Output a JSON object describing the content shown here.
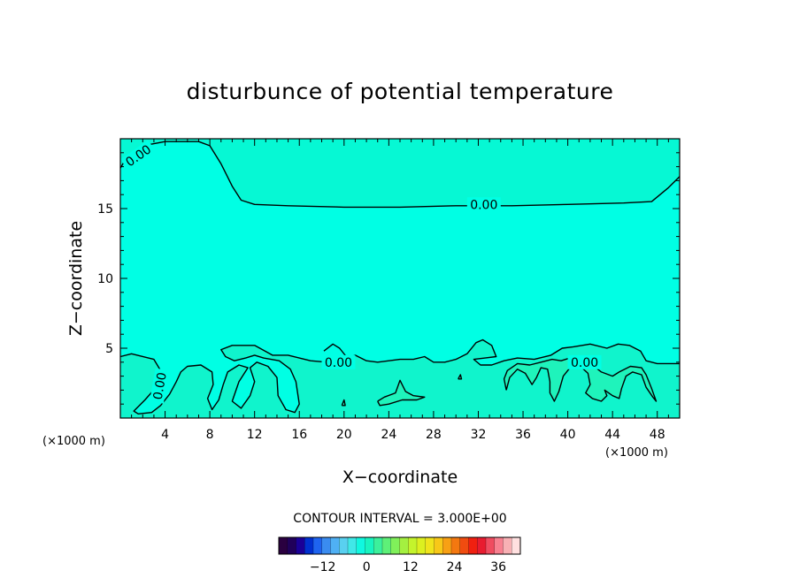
{
  "chart_data": {
    "type": "heatmap",
    "subtype": "contour",
    "title": "disturbunce of potential temperature",
    "xlabel": "X−coordinate",
    "ylabel": "Z−coordinate",
    "x_unit_label": "(×1000 m)",
    "xlim": [
      0,
      50
    ],
    "ylim": [
      0,
      20
    ],
    "x_ticks": [
      4,
      8,
      12,
      16,
      20,
      24,
      28,
      32,
      36,
      40,
      44,
      48
    ],
    "x_tick_labels": [
      "4",
      "8",
      "12",
      "16",
      "20",
      "24",
      "28",
      "32",
      "36",
      "40",
      "44",
      "48"
    ],
    "y_ticks": [
      5,
      10,
      15
    ],
    "y_tick_labels": [
      "5",
      "10",
      "15"
    ],
    "contour_interval_label": "CONTOUR INTERVAL = 3.000E+00",
    "contour_labels": [
      {
        "text": "0.00",
        "x": 1.6,
        "z": 18.8
      },
      {
        "text": "0.00",
        "x": 32.5,
        "z": 15.3
      },
      {
        "text": "0.00",
        "x": 19.5,
        "z": 4.0
      },
      {
        "text": "0.00",
        "x": 41.5,
        "z": 4.0
      },
      {
        "text": "0.00",
        "x": 3.5,
        "z": 2.3
      }
    ],
    "contours": [
      {
        "level": 0,
        "points": [
          [
            0,
            17.9
          ],
          [
            0.6,
            18.7
          ],
          [
            2,
            19.5
          ],
          [
            4,
            19.8
          ],
          [
            7,
            19.8
          ],
          [
            8,
            19.5
          ],
          [
            9,
            18.2
          ],
          [
            10,
            16.6
          ],
          [
            10.8,
            15.6
          ],
          [
            12,
            15.3
          ],
          [
            15,
            15.2
          ],
          [
            20,
            15.1
          ],
          [
            25,
            15.1
          ],
          [
            30,
            15.2
          ],
          [
            35,
            15.2
          ],
          [
            40,
            15.3
          ],
          [
            45,
            15.4
          ],
          [
            47.5,
            15.5
          ],
          [
            49,
            16.5
          ],
          [
            50,
            17.3
          ]
        ]
      },
      {
        "level": 0,
        "points": [
          [
            0,
            4.4
          ],
          [
            1,
            4.6
          ],
          [
            3,
            4.2
          ],
          [
            3.6,
            3.4
          ],
          [
            3.2,
            2.2
          ],
          [
            2.2,
            1.3
          ],
          [
            1.2,
            0.5
          ],
          [
            1.6,
            0.3
          ],
          [
            2.8,
            0.4
          ],
          [
            3.6,
            0.9
          ],
          [
            4.4,
            1.7
          ],
          [
            5,
            2.6
          ],
          [
            5.4,
            3.3
          ],
          [
            6,
            3.7
          ],
          [
            7.2,
            3.8
          ],
          [
            8.2,
            3.3
          ],
          [
            8.3,
            2.4
          ],
          [
            7.8,
            1.4
          ],
          [
            8.2,
            0.6
          ],
          [
            8.8,
            1.3
          ],
          [
            9.2,
            2.4
          ],
          [
            9.6,
            3.3
          ],
          [
            10.6,
            3.8
          ],
          [
            11.4,
            3.6
          ],
          [
            10.6,
            2.6
          ],
          [
            10,
            1.2
          ],
          [
            10.8,
            0.7
          ],
          [
            11.6,
            1.6
          ],
          [
            12,
            2.6
          ],
          [
            11.6,
            3.6
          ],
          [
            12.2,
            4.0
          ],
          [
            13.2,
            3.7
          ],
          [
            14,
            2.9
          ],
          [
            14.1,
            1.6
          ],
          [
            14.8,
            0.6
          ],
          [
            15.6,
            0.4
          ],
          [
            16,
            1.0
          ],
          [
            15.7,
            2.6
          ],
          [
            15.2,
            3.5
          ],
          [
            14.2,
            4.1
          ],
          [
            12.8,
            4.3
          ],
          [
            12,
            4.5
          ],
          [
            11.2,
            4.3
          ],
          [
            10.2,
            4.1
          ],
          [
            9.4,
            4.4
          ],
          [
            9,
            4.9
          ],
          [
            10,
            5.2
          ],
          [
            12,
            5.2
          ],
          [
            13.6,
            4.5
          ],
          [
            15,
            4.5
          ],
          [
            17,
            4.1
          ],
          [
            18.5,
            4.0
          ],
          [
            20,
            4.2
          ],
          [
            21,
            4.5
          ],
          [
            22,
            4.1
          ],
          [
            23,
            4.0
          ],
          [
            24,
            4.1
          ],
          [
            25,
            4.2
          ],
          [
            26.2,
            4.2
          ],
          [
            27.2,
            4.4
          ],
          [
            28,
            4.0
          ],
          [
            29,
            4.0
          ],
          [
            30,
            4.2
          ],
          [
            31,
            4.6
          ],
          [
            31.8,
            5.4
          ],
          [
            32.4,
            5.6
          ],
          [
            33.2,
            5.2
          ],
          [
            33.6,
            4.4
          ],
          [
            32.6,
            4.3
          ],
          [
            31.6,
            4.2
          ],
          [
            32.2,
            3.8
          ],
          [
            33.2,
            3.8
          ],
          [
            34.3,
            4.1
          ],
          [
            35.5,
            4.3
          ],
          [
            37,
            4.2
          ],
          [
            38.5,
            4.5
          ],
          [
            39.5,
            5.0
          ],
          [
            40.5,
            5.1
          ],
          [
            42,
            5.3
          ],
          [
            43.5,
            5.0
          ],
          [
            44.5,
            5.3
          ],
          [
            45.5,
            5.2
          ],
          [
            46.5,
            4.8
          ],
          [
            47,
            4.1
          ],
          [
            48,
            3.9
          ],
          [
            50,
            3.9
          ]
        ]
      },
      {
        "level": 0,
        "points": [
          [
            18.2,
            4.8
          ],
          [
            19,
            5.3
          ],
          [
            19.6,
            5.0
          ],
          [
            20.2,
            4.4
          ]
        ]
      },
      {
        "level": 0,
        "points": [
          [
            23,
            1.2
          ],
          [
            23.6,
            1.5
          ],
          [
            24.6,
            1.8
          ],
          [
            25,
            2.7
          ],
          [
            25.5,
            1.9
          ],
          [
            26.2,
            1.6
          ],
          [
            27.2,
            1.5
          ],
          [
            26.5,
            1.3
          ],
          [
            25.2,
            1.3
          ],
          [
            24,
            1.0
          ],
          [
            23.2,
            0.9
          ],
          [
            23,
            1.2
          ]
        ]
      },
      {
        "level": 0,
        "points": [
          [
            19.8,
            0.9
          ],
          [
            20,
            1.3
          ],
          [
            20.1,
            0.9
          ],
          [
            19.8,
            0.9
          ]
        ]
      },
      {
        "level": 0,
        "points": [
          [
            30.2,
            2.8
          ],
          [
            30.4,
            3.1
          ],
          [
            30.5,
            2.8
          ],
          [
            30.2,
            2.8
          ]
        ]
      },
      {
        "level": 0,
        "points": [
          [
            34.5,
            2.0
          ],
          [
            34.8,
            2.9
          ],
          [
            35.5,
            3.5
          ],
          [
            36.2,
            3.2
          ],
          [
            36.8,
            2.4
          ],
          [
            37.2,
            2.9
          ],
          [
            37.6,
            3.6
          ],
          [
            38.2,
            3.5
          ],
          [
            38.4,
            2.6
          ],
          [
            38.4,
            1.8
          ],
          [
            38.8,
            1.2
          ],
          [
            39.2,
            1.9
          ],
          [
            39.6,
            3.0
          ],
          [
            40.2,
            3.6
          ],
          [
            41,
            3.8
          ],
          [
            41.8,
            3.2
          ],
          [
            42,
            2.4
          ],
          [
            41.6,
            1.8
          ],
          [
            42.2,
            1.4
          ],
          [
            43,
            1.2
          ],
          [
            43.5,
            1.6
          ],
          [
            43.3,
            2.0
          ],
          [
            44,
            1.6
          ],
          [
            44.6,
            1.4
          ],
          [
            44.8,
            2.1
          ],
          [
            45.2,
            3.0
          ],
          [
            45.8,
            3.3
          ],
          [
            46.6,
            3.1
          ],
          [
            47,
            2.2
          ],
          [
            47.6,
            1.5
          ],
          [
            47.9,
            1.2
          ],
          [
            47.5,
            2.1
          ],
          [
            47,
            3.1
          ],
          [
            46.6,
            3.6
          ],
          [
            45.6,
            3.7
          ],
          [
            44.6,
            3.3
          ],
          [
            44,
            3.0
          ],
          [
            43,
            3.3
          ],
          [
            42.2,
            3.8
          ],
          [
            41.2,
            4.2
          ],
          [
            40.2,
            4.3
          ],
          [
            39.4,
            4.1
          ],
          [
            38.6,
            4.2
          ],
          [
            37.6,
            4.0
          ],
          [
            36.6,
            3.8
          ],
          [
            35.5,
            3.9
          ],
          [
            34.6,
            3.4
          ],
          [
            34.3,
            2.8
          ],
          [
            34.5,
            2.0
          ]
        ]
      }
    ],
    "colorbar": {
      "ticks": [
        -12,
        0,
        12,
        24,
        36
      ],
      "tick_labels": [
        "−12",
        "0",
        "12",
        "24",
        "36"
      ],
      "range": [
        -24,
        42
      ],
      "colors": [
        "#2a0040",
        "#20005a",
        "#1a0098",
        "#0030d0",
        "#1e64f0",
        "#3a8cf0",
        "#4fb0f4",
        "#59d0f0",
        "#40e8e8",
        "#10f8e0",
        "#18f4c0",
        "#3cf09c",
        "#5ef078",
        "#80f05a",
        "#a4f040",
        "#c4f42c",
        "#dcf020",
        "#f0e41c",
        "#f8c818",
        "#f8a014",
        "#f47810",
        "#f04c10",
        "#f02010",
        "#e81c30",
        "#f04c60",
        "#f88090",
        "#f8b0b4",
        "#ffe0e0"
      ]
    },
    "fill_colors": {
      "background": "#00ffe4",
      "upper_region": "#06f8d4",
      "lower_region": "#10f4cc",
      "lower_patches": "#3cf09c"
    },
    "grid": false,
    "legend": "colorbar-bottom"
  }
}
